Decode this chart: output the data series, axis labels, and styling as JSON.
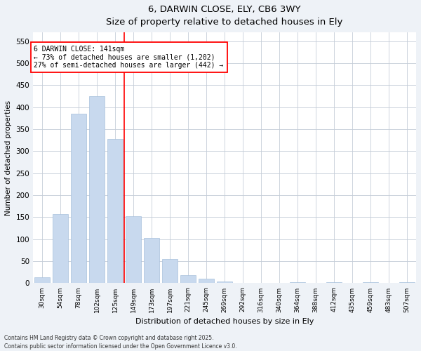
{
  "title_line1": "6, DARWIN CLOSE, ELY, CB6 3WY",
  "title_line2": "Size of property relative to detached houses in Ely",
  "xlabel": "Distribution of detached houses by size in Ely",
  "ylabel": "Number of detached properties",
  "bar_color": "#c8d9ee",
  "bar_edge_color": "#a8c0dc",
  "categories": [
    "30sqm",
    "54sqm",
    "78sqm",
    "102sqm",
    "125sqm",
    "149sqm",
    "173sqm",
    "197sqm",
    "221sqm",
    "245sqm",
    "269sqm",
    "292sqm",
    "316sqm",
    "340sqm",
    "364sqm",
    "388sqm",
    "412sqm",
    "435sqm",
    "459sqm",
    "483sqm",
    "507sqm"
  ],
  "values": [
    13,
    157,
    385,
    425,
    328,
    153,
    103,
    55,
    18,
    10,
    4,
    1,
    0,
    0,
    3,
    0,
    3,
    0,
    3,
    0,
    3
  ],
  "ylim": [
    0,
    570
  ],
  "yticks": [
    0,
    50,
    100,
    150,
    200,
    250,
    300,
    350,
    400,
    450,
    500,
    550
  ],
  "red_line_x": 4.5,
  "annotation_title": "6 DARWIN CLOSE: 141sqm",
  "annotation_line1": "← 73% of detached houses are smaller (1,202)",
  "annotation_line2": "27% of semi-detached houses are larger (442) →",
  "footer_line1": "Contains HM Land Registry data © Crown copyright and database right 2025.",
  "footer_line2": "Contains public sector information licensed under the Open Government Licence v3.0.",
  "background_color": "#eef2f7",
  "plot_bg_color": "#ffffff",
  "grid_color": "#c5cdd8"
}
